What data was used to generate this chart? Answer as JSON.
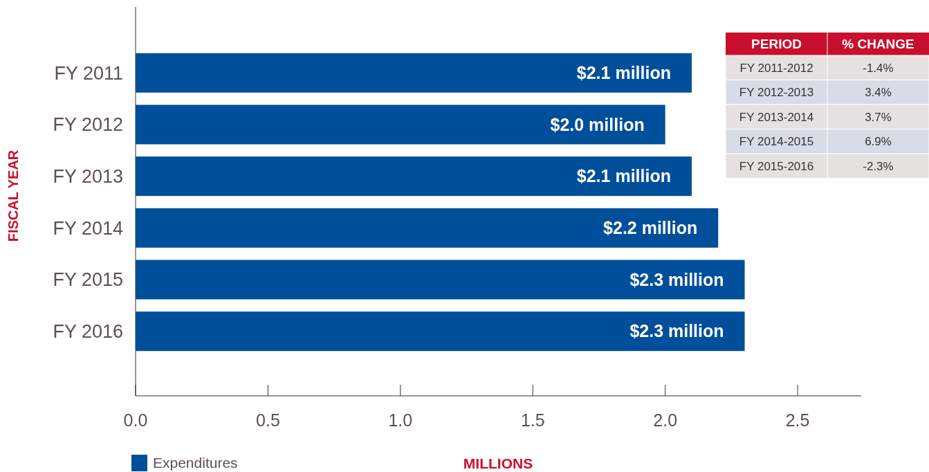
{
  "chart_data": [
    {
      "type": "bar",
      "orientation": "horizontal",
      "ylabel": "FISCAL YEAR",
      "xlabel": "MILLIONS",
      "categories": [
        "FY 2011",
        "FY 2012",
        "FY 2013",
        "FY 2014",
        "FY 2015",
        "FY 2016"
      ],
      "series": [
        {
          "name": "Expenditures",
          "color": "#004f9a",
          "values": [
            2.1,
            2.0,
            2.1,
            2.2,
            2.3,
            2.3
          ],
          "value_labels": [
            "$2.1 million",
            "$2.0 million",
            "$2.1 million",
            "$2.2 million",
            "$2.3 million",
            "$2.3 million"
          ]
        }
      ],
      "xlim": [
        0,
        2.74
      ],
      "xticks": [
        {
          "value": 0,
          "label": "0.0"
        },
        {
          "value": 0.5,
          "label": "0.5"
        },
        {
          "value": 1,
          "label": "1.0"
        },
        {
          "value": 1.5,
          "label": "1.5"
        },
        {
          "value": 2,
          "label": "2.0"
        },
        {
          "value": 2.5,
          "label": "2.5"
        }
      ],
      "grid": false,
      "legend": "bottom left"
    },
    {
      "type": "other",
      "xlabel": "PERIOD",
      "ylabel": "% CHANGE",
      "categories": [
        "FY 2011-2012",
        "FY 2012-2013",
        "FY 2013-2014",
        "FY 2014-2015",
        "FY 2015-2016"
      ],
      "value_labels": [
        "-1.4%",
        "3.4%",
        "3.7%",
        "6.9%",
        "-2.3%"
      ]
    }
  ]
}
